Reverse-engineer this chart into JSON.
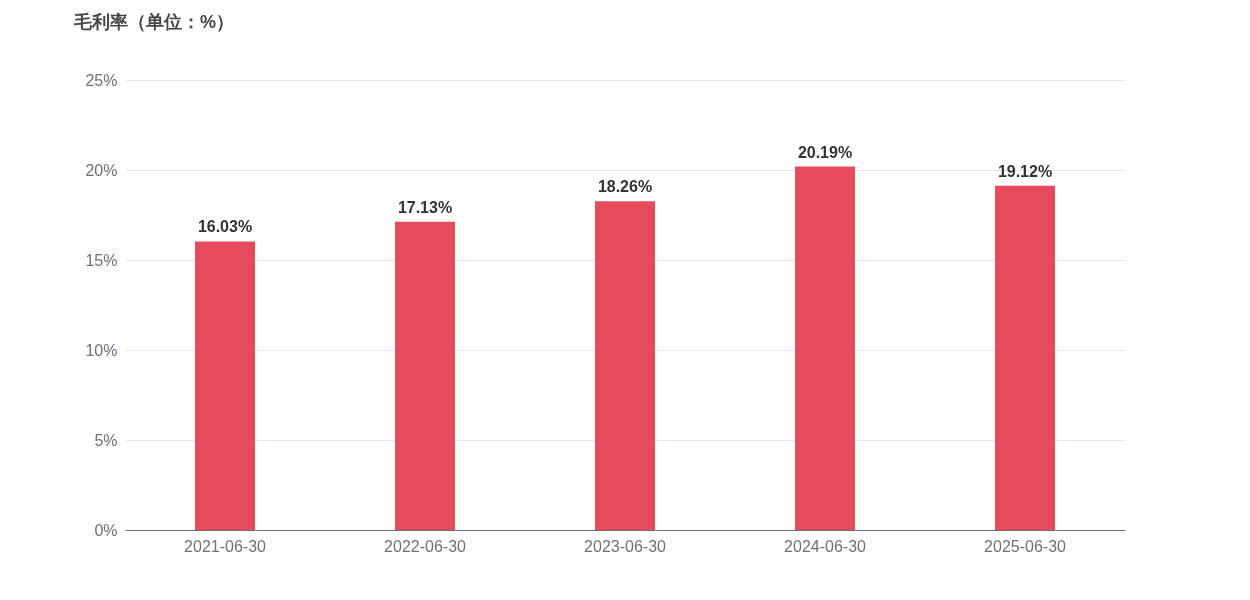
{
  "chart_data": {
    "type": "bar",
    "title": "毛利率（单位：%）",
    "categories": [
      "2021-06-30",
      "2022-06-30",
      "2023-06-30",
      "2024-06-30",
      "2025-06-30"
    ],
    "values": [
      16.03,
      17.13,
      18.26,
      20.19,
      19.12
    ],
    "value_labels": [
      "16.03%",
      "17.13%",
      "18.26%",
      "20.19%",
      "19.12%"
    ],
    "color": "#e54b5c",
    "ylim": [
      0,
      25
    ],
    "yticks": [
      {
        "value": 0,
        "label": "0%"
      },
      {
        "value": 5,
        "label": "5%"
      },
      {
        "value": 10,
        "label": "10%"
      },
      {
        "value": 15,
        "label": "15%"
      },
      {
        "value": 20,
        "label": "20%"
      },
      {
        "value": 25,
        "label": "25%"
      }
    ],
    "grid": "y"
  }
}
